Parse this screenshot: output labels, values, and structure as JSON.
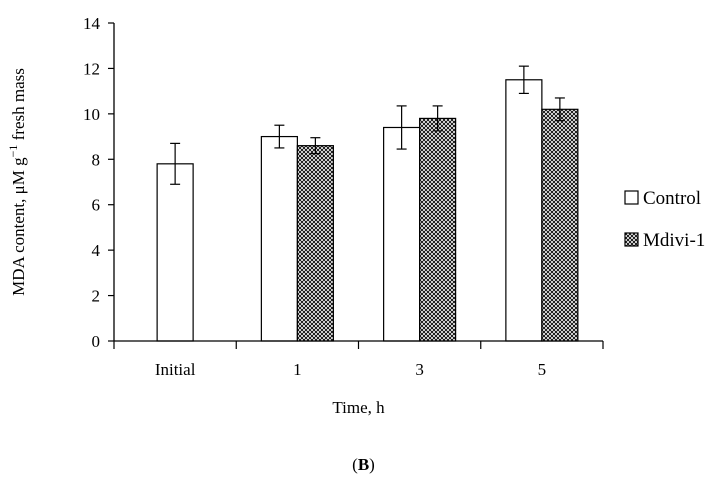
{
  "chart_data": {
    "type": "bar",
    "categories": [
      "Initial",
      "1",
      "3",
      "5"
    ],
    "series": [
      {
        "name": "Control",
        "values": [
          7.8,
          9.0,
          9.4,
          11.5
        ],
        "errors": [
          0.9,
          0.5,
          0.95,
          0.6
        ],
        "fill": "#ffffff"
      },
      {
        "name": "Mdivi-1",
        "values": [
          null,
          8.6,
          9.8,
          10.2
        ],
        "errors": [
          null,
          0.35,
          0.55,
          0.5
        ],
        "fill": "crosshatch"
      }
    ],
    "xlabel": "Time, h",
    "ylabel_parts": [
      "MDA content, μM g",
      "−1",
      " fresh mass"
    ],
    "ylim": [
      0,
      14
    ],
    "yticks": [
      0,
      2,
      4,
      6,
      8,
      10,
      12,
      14
    ],
    "grid": false,
    "legend_position": "right"
  },
  "panel_label": "B"
}
